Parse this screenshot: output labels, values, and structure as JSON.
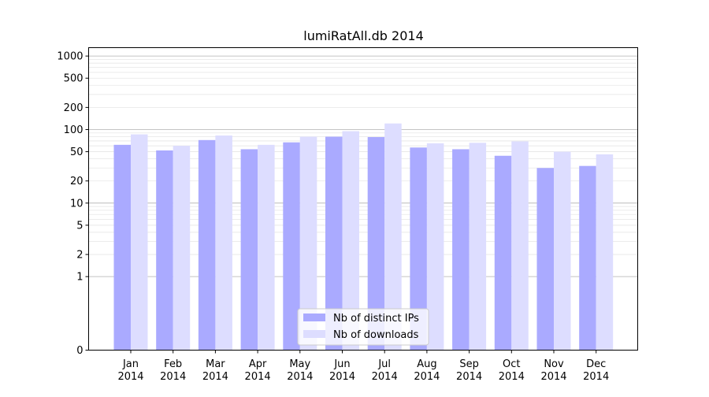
{
  "chart_data": {
    "type": "bar",
    "title": "lumiRatAll.db 2014",
    "xlabel": "",
    "ylabel": "",
    "yscale": "symlog",
    "ylim": [
      0,
      1300
    ],
    "yticks": [
      0,
      1,
      2,
      5,
      10,
      20,
      50,
      100,
      200,
      500,
      1000
    ],
    "ytick_labels": [
      "0",
      "1",
      "2",
      "5",
      "10",
      "20",
      "50",
      "100",
      "200",
      "500",
      "1000"
    ],
    "grid": true,
    "legend_position": "bottom-center",
    "categories": [
      [
        "Jan",
        "2014"
      ],
      [
        "Feb",
        "2014"
      ],
      [
        "Mar",
        "2014"
      ],
      [
        "Apr",
        "2014"
      ],
      [
        "May",
        "2014"
      ],
      [
        "Jun",
        "2014"
      ],
      [
        "Jul",
        "2014"
      ],
      [
        "Aug",
        "2014"
      ],
      [
        "Sep",
        "2014"
      ],
      [
        "Oct",
        "2014"
      ],
      [
        "Nov",
        "2014"
      ],
      [
        "Dec",
        "2014"
      ]
    ],
    "series": [
      {
        "name": "Nb of distinct IPs",
        "color": "#aaaaff",
        "values": [
          62,
          52,
          72,
          54,
          67,
          80,
          79,
          57,
          54,
          44,
          30,
          32
        ]
      },
      {
        "name": "Nb of downloads",
        "color": "#ddddff",
        "values": [
          86,
          60,
          83,
          62,
          80,
          95,
          121,
          65,
          66,
          69,
          50,
          46
        ]
      }
    ]
  }
}
